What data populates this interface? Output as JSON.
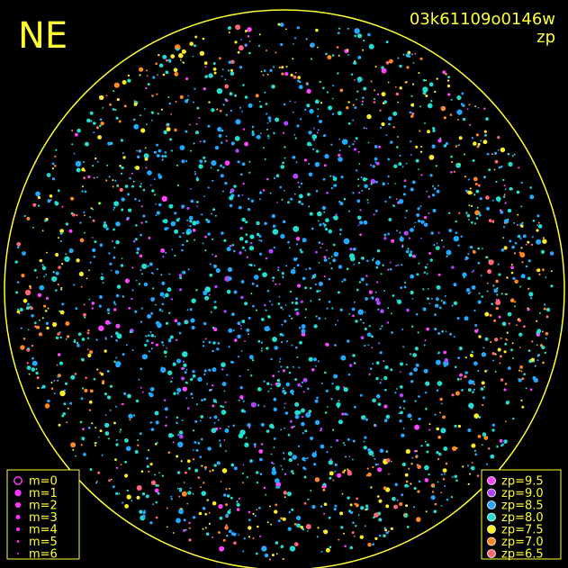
{
  "header": {
    "direction": "NE",
    "image_id": "03k61109o0146w",
    "mode": "zp"
  },
  "magnitude_legend": {
    "items": [
      {
        "label": "m=0"
      },
      {
        "label": "m=1"
      },
      {
        "label": "m=2"
      },
      {
        "label": "m=3"
      },
      {
        "label": "m=4"
      },
      {
        "label": "m=5"
      },
      {
        "label": "m=6"
      }
    ],
    "color": "#ff33ff"
  },
  "zp_legend": {
    "items": [
      {
        "label": "zp=9.5",
        "color": "#ff44ff"
      },
      {
        "label": "zp=9.0",
        "color": "#b044ff"
      },
      {
        "label": "zp=8.5",
        "color": "#22a8ff"
      },
      {
        "label": "zp=8.0",
        "color": "#22ddd0"
      },
      {
        "label": "zp=7.5",
        "color": "#ffee22"
      },
      {
        "label": "zp=7.0",
        "color": "#ff8822"
      },
      {
        "label": "zp=6.5",
        "color": "#ff6677"
      }
    ]
  }
}
